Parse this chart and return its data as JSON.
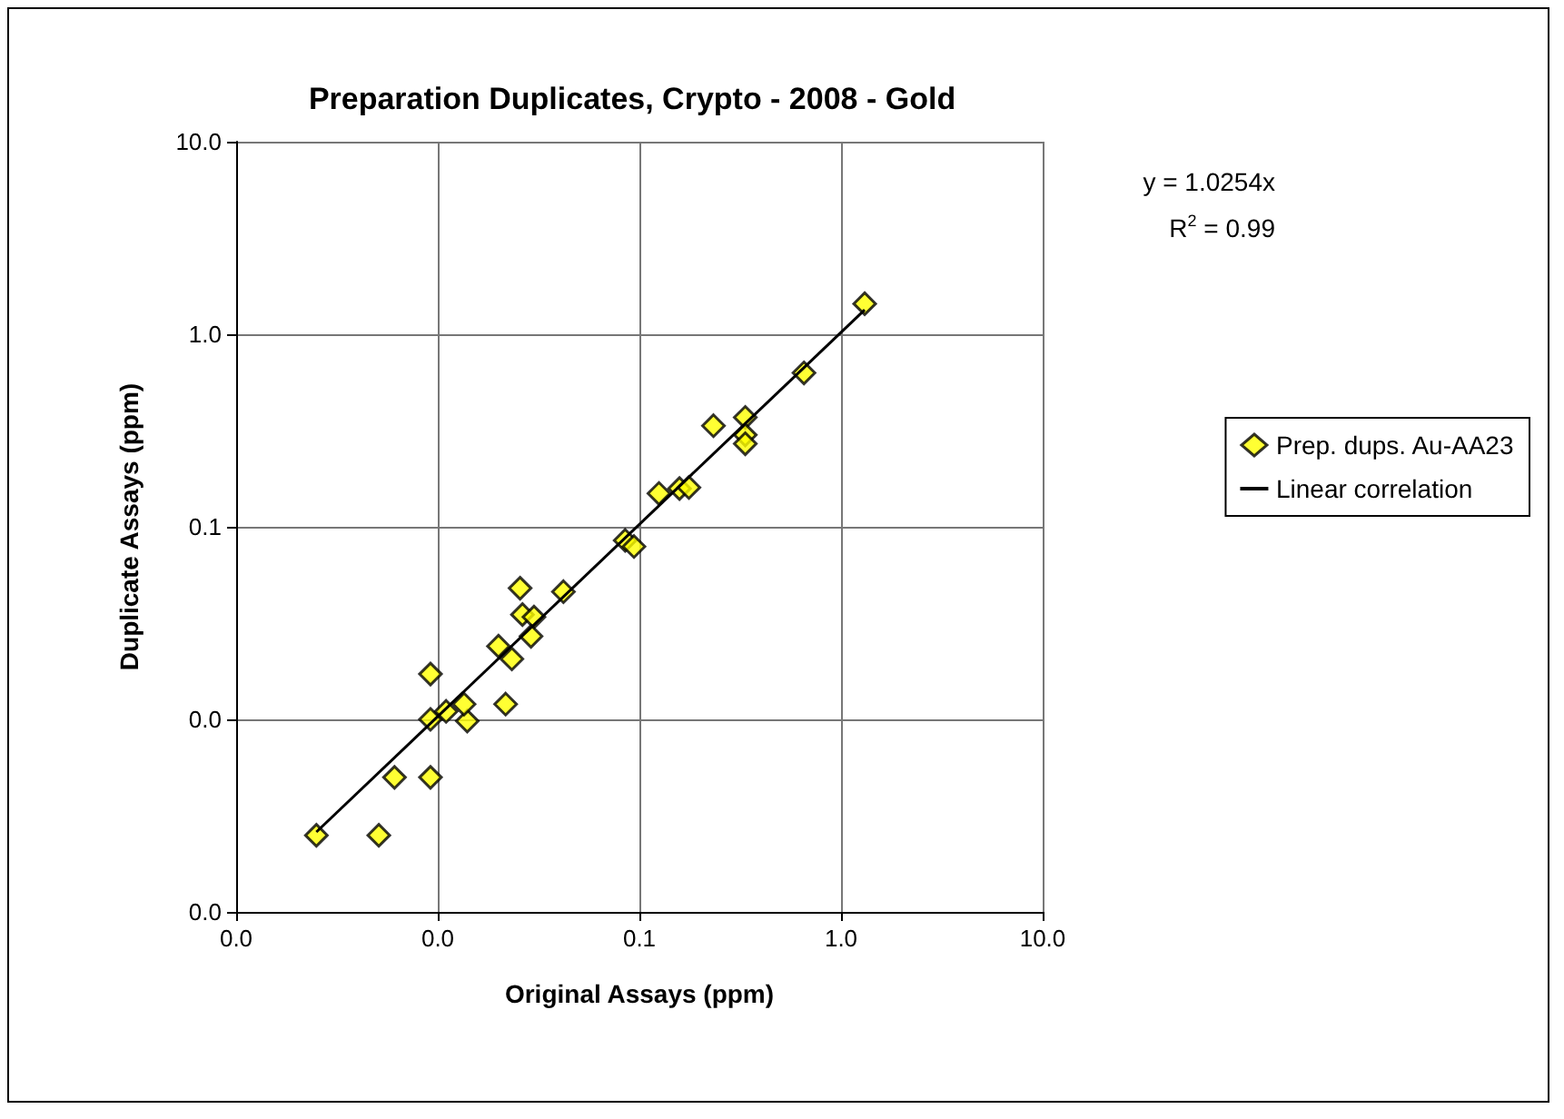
{
  "chart_data": {
    "type": "scatter",
    "title": "Preparation Duplicates, Crypto - 2008 - Gold",
    "xlabel": "Original Assays (ppm)",
    "ylabel": "Duplicate Assays (ppm)",
    "log": "xy",
    "grid": true,
    "legend": "right",
    "marker": "diamond",
    "xlim": [
      0.001,
      10
    ],
    "ylim": [
      0.001,
      10
    ],
    "xticks": [
      {
        "value": 0.001,
        "label": "0.0"
      },
      {
        "value": 0.01,
        "label": "0.0"
      },
      0.1,
      {
        "value": 1,
        "label": "1.0"
      },
      {
        "value": 10,
        "label": "10.0"
      }
    ],
    "yticks": [
      {
        "value": 0.001,
        "label": "0.0"
      },
      {
        "value": 0.01,
        "label": "0.0"
      },
      0.1,
      {
        "value": 1,
        "label": "1.0"
      },
      {
        "value": 10,
        "label": "10.0"
      }
    ],
    "annotations": [
      "y = 1.0254x",
      "R$^{2}$ = 0.99"
    ],
    "series": [
      {
        "name": "Prep. dups. Au-AA23",
        "color": "#ffff00",
        "x": [
          0.0025,
          0.0051,
          0.0061,
          0.0092,
          0.0092,
          0.0092,
          0.011,
          0.014,
          0.0135,
          0.0217,
          0.02,
          0.0233,
          0.0256,
          0.0263,
          0.03,
          0.029,
          0.042,
          0.085,
          0.094,
          0.125,
          0.158,
          0.176,
          0.233,
          0.335,
          0.335,
          0.335,
          0.655,
          1.31
        ],
        "values": [
          0.0025,
          0.0025,
          0.005,
          0.005,
          0.01,
          0.0172,
          0.011,
          0.0098,
          0.012,
          0.012,
          0.024,
          0.0206,
          0.048,
          0.035,
          0.034,
          0.027,
          0.046,
          0.085,
          0.079,
          0.149,
          0.158,
          0.16,
          0.335,
          0.37,
          0.3,
          0.27,
          0.63,
          1.44
        ]
      },
      {
        "name": "Linear correlation",
        "type": "line",
        "color": "#000000",
        "marker": "none",
        "line_style": "solid",
        "x": [
          0.0025,
          1.31
        ],
        "values": [
          0.0026,
          1.34
        ]
      }
    ]
  }
}
